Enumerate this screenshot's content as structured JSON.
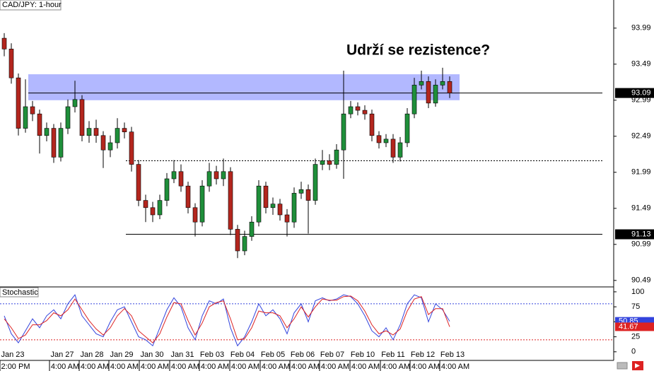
{
  "chart_data": {
    "type": "candlestick",
    "title": "CAD/JPY: 1-hour",
    "annotation": "Udrží se rezistence?",
    "up_color": "#1f8f3a",
    "down_color": "#b3261e",
    "open": [
      93.85,
      93.7,
      93.3,
      92.6,
      92.9,
      92.8,
      92.5,
      92.6,
      92.2,
      92.6,
      92.9,
      93.0,
      92.5,
      92.6,
      92.5,
      92.3,
      92.4,
      92.6,
      92.55,
      92.1,
      91.6,
      91.5,
      91.4,
      91.6,
      91.9,
      92.0,
      91.8,
      91.5,
      91.3,
      91.8,
      92.0,
      91.9,
      92.0,
      91.2,
      90.9,
      91.1,
      91.3,
      91.8,
      91.5,
      91.55,
      91.4,
      91.3,
      91.7,
      91.75,
      91.6,
      92.1,
      92.15,
      92.1,
      92.3,
      92.8,
      92.9,
      92.85,
      92.8,
      92.5,
      92.4,
      92.45,
      92.2,
      92.4,
      92.8,
      93.2,
      93.25,
      92.95,
      93.2,
      93.25
    ],
    "high": [
      93.92,
      93.78,
      93.36,
      93.28,
      92.98,
      92.86,
      92.68,
      92.66,
      92.68,
      93.0,
      93.26,
      93.06,
      92.7,
      92.72,
      92.56,
      92.5,
      92.74,
      92.68,
      92.62,
      92.16,
      91.68,
      91.58,
      91.68,
      91.98,
      92.16,
      92.1,
      91.86,
      91.56,
      91.88,
      92.12,
      92.08,
      92.18,
      92.06,
      91.26,
      91.18,
      91.38,
      91.88,
      91.86,
      91.64,
      91.62,
      91.48,
      91.78,
      91.86,
      91.82,
      92.18,
      92.3,
      92.24,
      92.38,
      93.4,
      92.98,
      92.96,
      92.92,
      92.86,
      92.56,
      92.52,
      92.52,
      92.48,
      92.88,
      93.3,
      93.4,
      93.32,
      93.28,
      93.44,
      93.32
    ],
    "low": [
      93.6,
      93.22,
      92.5,
      92.54,
      92.7,
      92.25,
      92.42,
      92.12,
      92.14,
      92.52,
      92.82,
      92.42,
      92.4,
      92.4,
      92.05,
      92.2,
      92.32,
      92.46,
      92.0,
      91.52,
      91.3,
      91.3,
      91.34,
      91.52,
      91.84,
      91.72,
      91.42,
      91.1,
      91.24,
      91.72,
      91.82,
      91.8,
      91.12,
      90.8,
      90.84,
      91.04,
      91.24,
      91.42,
      91.4,
      91.32,
      91.1,
      91.22,
      91.62,
      91.14,
      91.54,
      92.02,
      92.02,
      92.04,
      91.9,
      92.74,
      92.78,
      92.72,
      92.42,
      92.32,
      92.34,
      92.12,
      92.14,
      92.34,
      92.74,
      93.14,
      92.88,
      92.9,
      93.14,
      93.02
    ],
    "close": [
      93.7,
      93.3,
      92.6,
      92.9,
      92.8,
      92.5,
      92.6,
      92.2,
      92.6,
      92.9,
      93.0,
      92.5,
      92.6,
      92.5,
      92.3,
      92.4,
      92.6,
      92.55,
      92.1,
      91.6,
      91.5,
      91.4,
      91.6,
      91.9,
      92.0,
      91.8,
      91.5,
      91.3,
      91.8,
      92.0,
      91.9,
      92.0,
      91.2,
      90.9,
      91.1,
      91.3,
      91.8,
      91.5,
      91.55,
      91.4,
      91.3,
      91.7,
      91.75,
      91.6,
      92.1,
      92.15,
      92.1,
      92.3,
      92.8,
      92.9,
      92.85,
      92.8,
      92.5,
      92.4,
      92.45,
      92.2,
      92.4,
      92.8,
      93.2,
      93.25,
      92.95,
      93.2,
      93.25,
      93.09
    ],
    "ylim": [
      90.41,
      94.38
    ],
    "yticks": [
      93.99,
      93.49,
      92.99,
      92.49,
      91.99,
      91.49,
      90.99,
      90.49
    ],
    "zone": [
      92.99,
      93.35
    ],
    "zone_color": "#aab0ff",
    "levels": [
      {
        "value": 93.09,
        "style": "solid",
        "marker": true
      },
      {
        "value": 92.15,
        "style": "dotted",
        "marker": false
      },
      {
        "value": 91.13,
        "style": "solid",
        "marker": true
      }
    ],
    "dates": [
      "Jan 23",
      "Jan 27",
      "Jan 28",
      "Jan 29",
      "Jan 30",
      "Jan 31",
      "Feb 03",
      "Feb 04",
      "Feb 05",
      "Feb 06",
      "Feb 07",
      "Feb 10",
      "Feb 11",
      "Feb 12",
      "Feb 13"
    ],
    "times": [
      "2:00 PM",
      "4:00 AM",
      "4:00 AM",
      "4:00 AM",
      "4:00 AM",
      "4:00 AM",
      "4:00 AM",
      "4:00 AM",
      "4:00 AM",
      "4:00 AM",
      "4:00 AM",
      "4:00 AM",
      "4:00 AM",
      "4:00 AM",
      "4:00 AM"
    ],
    "stochastic": {
      "title": "Stochastic",
      "ylim": [
        -12,
        107
      ],
      "yticks": [
        0,
        25,
        50,
        75,
        100
      ],
      "levels": [
        {
          "value": 80,
          "color": "#3344dd"
        },
        {
          "value": 20,
          "color": "#dd2222"
        }
      ],
      "series": [
        {
          "color": "#3344dd",
          "values": [
            60,
            30,
            15,
            35,
            55,
            40,
            60,
            70,
            55,
            80,
            95,
            60,
            45,
            30,
            25,
            50,
            70,
            75,
            50,
            25,
            20,
            10,
            40,
            70,
            90,
            75,
            40,
            20,
            60,
            85,
            80,
            88,
            40,
            10,
            25,
            50,
            80,
            60,
            70,
            55,
            30,
            65,
            80,
            50,
            85,
            90,
            85,
            88,
            95,
            92,
            80,
            60,
            35,
            25,
            40,
            20,
            45,
            80,
            95,
            90,
            50,
            80,
            70,
            50.85
          ]
        },
        {
          "color": "#dd2222",
          "values": [
            55,
            40,
            22,
            28,
            45,
            45,
            52,
            65,
            60,
            70,
            88,
            70,
            52,
            38,
            28,
            40,
            60,
            72,
            60,
            35,
            25,
            15,
            30,
            58,
            82,
            80,
            52,
            28,
            48,
            75,
            82,
            85,
            55,
            20,
            22,
            40,
            68,
            65,
            65,
            60,
            40,
            55,
            75,
            58,
            75,
            88,
            86,
            86,
            92,
            93,
            85,
            68,
            45,
            30,
            35,
            28,
            38,
            68,
            88,
            92,
            62,
            72,
            72,
            41.67
          ]
        }
      ]
    }
  }
}
